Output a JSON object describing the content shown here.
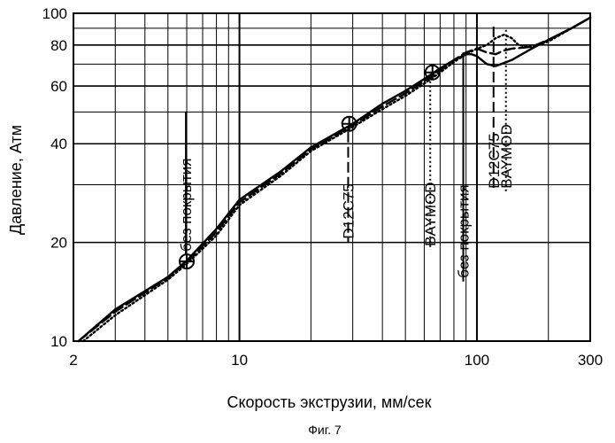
{
  "chart_data": {
    "type": "line",
    "title": "",
    "caption": "Фиг. 7",
    "xlabel": "Скорость экструзии, мм/сек",
    "ylabel": "Давление, Атм",
    "x_scale": "log",
    "y_scale": "log",
    "xlim": [
      2,
      300
    ],
    "ylim": [
      10,
      100
    ],
    "x_ticks": [
      2,
      10,
      100,
      300
    ],
    "y_ticks": [
      10,
      20,
      40,
      60,
      80,
      100
    ],
    "grid": true,
    "series": [
      {
        "style": "solid",
        "x": [
          2.1,
          3,
          5,
          6,
          8,
          10,
          15,
          20,
          30,
          40,
          50,
          60,
          70,
          80,
          90,
          95,
          100,
          110,
          120,
          140,
          170,
          200,
          250,
          300
        ],
        "y": [
          10,
          12.5,
          15.7,
          17.6,
          22,
          27,
          33,
          39,
          46,
          53,
          58,
          63,
          68,
          72,
          75,
          75,
          74,
          70,
          69,
          72,
          78,
          83,
          90,
          97
        ]
      },
      {
        "style": "dashed",
        "x": [
          2.1,
          3,
          5,
          6,
          8,
          10,
          15,
          20,
          30,
          40,
          50,
          60,
          70,
          80,
          90,
          100,
          110,
          120,
          130,
          140,
          170,
          200,
          250,
          300
        ],
        "y": [
          10,
          12.3,
          15.6,
          17.4,
          21.5,
          26.5,
          32.5,
          38.5,
          45.5,
          52,
          57,
          62,
          67,
          72,
          76,
          78,
          76,
          75,
          77,
          78,
          79,
          83,
          90,
          97
        ]
      },
      {
        "style": "dotted",
        "x": [
          2.2,
          3,
          5,
          6,
          8,
          10,
          15,
          20,
          30,
          40,
          50,
          60,
          70,
          80,
          90,
          100,
          110,
          120,
          130,
          140,
          150,
          170,
          200,
          250,
          300
        ],
        "y": [
          10,
          12,
          15.4,
          17.2,
          21,
          26,
          32,
          38,
          45,
          51,
          56,
          61,
          66,
          71,
          75,
          78,
          80,
          84,
          86,
          84,
          80,
          79,
          82,
          90,
          97
        ]
      }
    ],
    "markers": [
      {
        "x": 6,
        "y": 17.5
      },
      {
        "x": 29,
        "y": 46
      },
      {
        "x": 65,
        "y": 66
      }
    ],
    "annotations": [
      {
        "text": "без покрытия",
        "x": 5.95,
        "y_top": 50,
        "y_bottom": 18.3,
        "style": "solid"
      },
      {
        "text": "D12C75",
        "x": 28.7,
        "y_top": 43.5,
        "y_bottom": 20,
        "style": "dashed"
      },
      {
        "text": "BAYMOD",
        "x": 63.6,
        "y_top": 64,
        "y_bottom": 19,
        "style": "dotted"
      },
      {
        "text": "без покрытия",
        "x": 87.6,
        "y_top": 76,
        "y_bottom": 15.2,
        "style": "solid"
      },
      {
        "text": "D12C75",
        "x": 117.5,
        "y_top": 91,
        "y_bottom": 28.5,
        "style": "dashed"
      },
      {
        "text": "BAYMOD",
        "x": 132.5,
        "y_top": 89,
        "y_bottom": 28.5,
        "style": "dotted"
      }
    ]
  }
}
